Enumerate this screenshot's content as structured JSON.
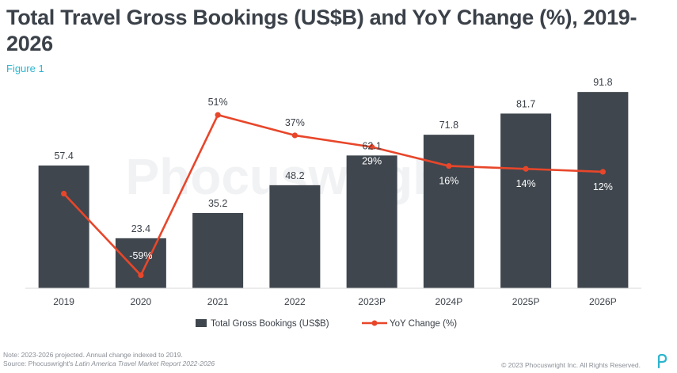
{
  "title": "Total Travel Gross Bookings (US$B) and YoY Change (%), 2019-2026",
  "figure_label": "Figure 1",
  "watermark": "Phocuswright",
  "note": {
    "line1": "Note: 2023-2026 projected. Annual change indexed to 2019.",
    "source_prefix": "Source: Phocuswright's ",
    "source_title": "Latin America Travel Market Report 2022-2026"
  },
  "copyright": "© 2023 Phocuswright Inc. All Rights Reserved.",
  "colors": {
    "bar": "#3f464e",
    "line": "#e8462a",
    "text": "#3b4149",
    "accent": "#2bb5cf",
    "bar_label_light": "#ffffff"
  },
  "chart_data": {
    "type": "bar",
    "title": "Total Travel Gross Bookings (US$B) and YoY Change (%), 2019-2026",
    "categories": [
      "2019",
      "2020",
      "2021",
      "2022",
      "2023P",
      "2024P",
      "2025P",
      "2026P"
    ],
    "series": [
      {
        "name": "Total Gross Bookings (US$B)",
        "type": "bar",
        "values": [
          57.4,
          23.4,
          35.2,
          48.2,
          62.1,
          71.8,
          81.7,
          91.8
        ],
        "labels": [
          "57.4",
          "23.4",
          "35.2",
          "48.2",
          "62.1",
          "71.8",
          "81.7",
          "91.8"
        ]
      },
      {
        "name": "YoY Change (%)",
        "type": "line",
        "values": [
          null,
          -59,
          51,
          37,
          29,
          16,
          14,
          12
        ],
        "labels": [
          "",
          "-59%",
          "51%",
          "37%",
          "29%",
          "16%",
          "14%",
          "12%"
        ]
      }
    ],
    "line_start_marker_percent": -3,
    "bar_ylim": [
      0,
      100
    ],
    "line_ylim": [
      -70,
      70
    ],
    "legend": "bottom-center",
    "xlabel": "",
    "ylabel": "",
    "grid": false
  }
}
